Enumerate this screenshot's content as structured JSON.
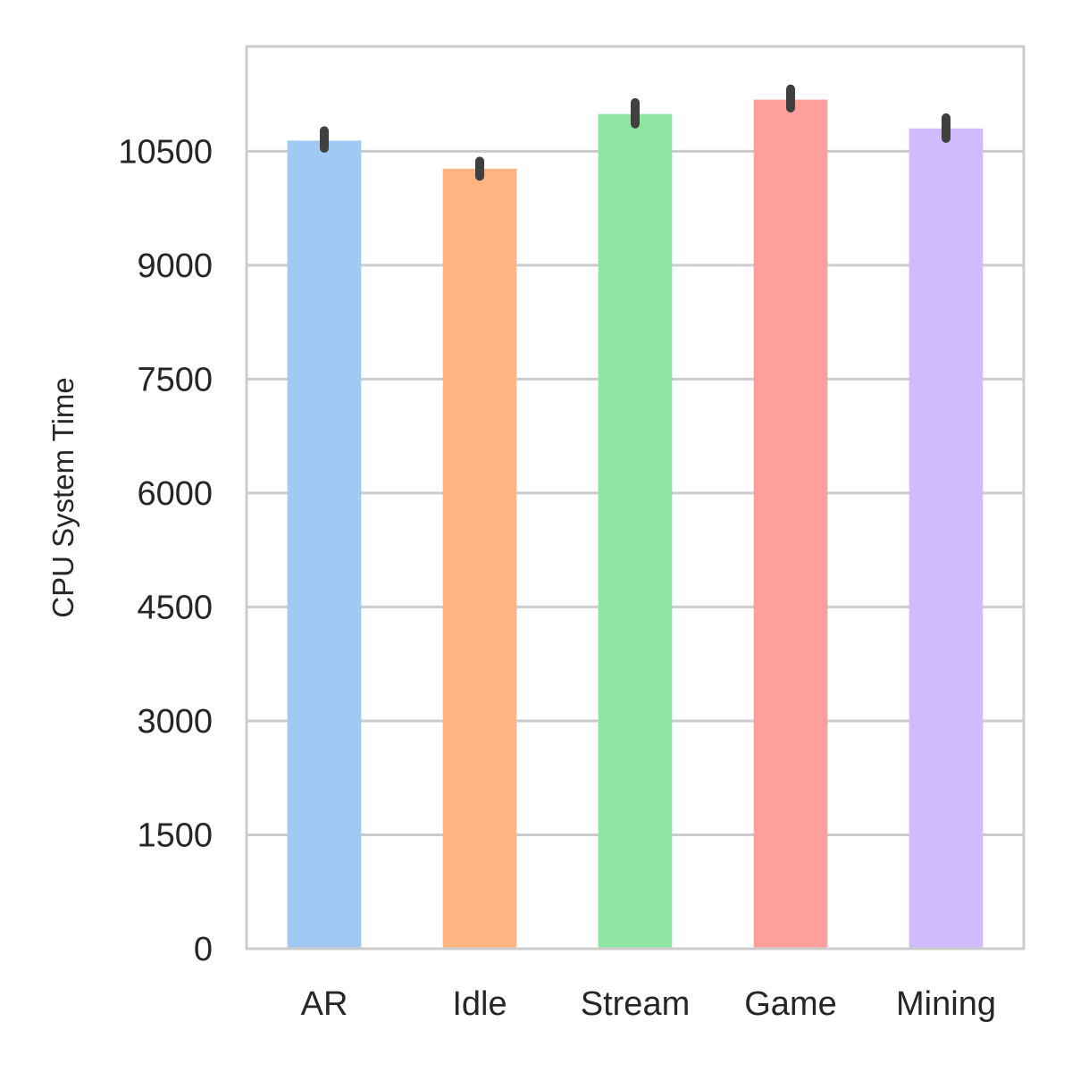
{
  "chart_data": {
    "type": "bar",
    "title": "",
    "xlabel": "",
    "ylabel": "CPU System Time",
    "categories": [
      "AR",
      "Idle",
      "Stream",
      "Game",
      "Mining"
    ],
    "values": [
      10640,
      10270,
      10990,
      11180,
      10800
    ],
    "error_bars": [
      {
        "low": 10540,
        "high": 10770
      },
      {
        "low": 10170,
        "high": 10370
      },
      {
        "low": 10860,
        "high": 11140
      },
      {
        "low": 11070,
        "high": 11320
      },
      {
        "low": 10670,
        "high": 10940
      }
    ],
    "ylim": [
      0,
      11880
    ],
    "yticks": [
      0,
      1500,
      3000,
      4500,
      6000,
      7500,
      9000,
      10500
    ],
    "grid": "horizontal",
    "colors": [
      "#a1c9f4",
      "#ffb482",
      "#8de5a1",
      "#ff9f9b",
      "#d0bbff"
    ],
    "error_bar_color": "#404040",
    "grid_color": "#cccccc",
    "spine_color": "#cccccc"
  }
}
